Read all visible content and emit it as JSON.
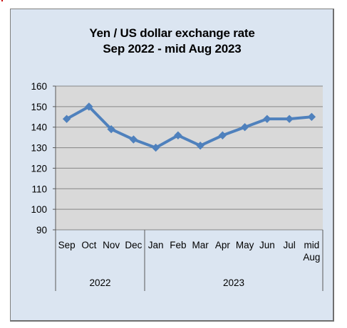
{
  "chart_data": {
    "type": "line",
    "title": [
      "Yen / US dollar exchange rate",
      "Sep 2022 - mid Aug 2023"
    ],
    "xlabel": "",
    "ylabel": "",
    "ylim": [
      90,
      160
    ],
    "yticks": [
      160,
      150,
      140,
      130,
      120,
      110,
      100,
      90
    ],
    "grid": true,
    "legend": "none",
    "categories": [
      "Sep",
      "Oct",
      "Nov",
      "Dec",
      "Jan",
      "Feb",
      "Mar",
      "Apr",
      "May",
      "Jun",
      "Jul",
      "mid Aug"
    ],
    "category_groups": [
      {
        "label": "2022",
        "count": 4
      },
      {
        "label": "2023",
        "count": 8
      }
    ],
    "series": [
      {
        "values": [
          144,
          150,
          139,
          134,
          130,
          136,
          131,
          136,
          140,
          144,
          144,
          145
        ]
      }
    ],
    "colors": {
      "line": "#4f81bd",
      "background": "#dbe5f1",
      "plot_area": "#d9d9d9",
      "gridline": "#868686"
    }
  }
}
